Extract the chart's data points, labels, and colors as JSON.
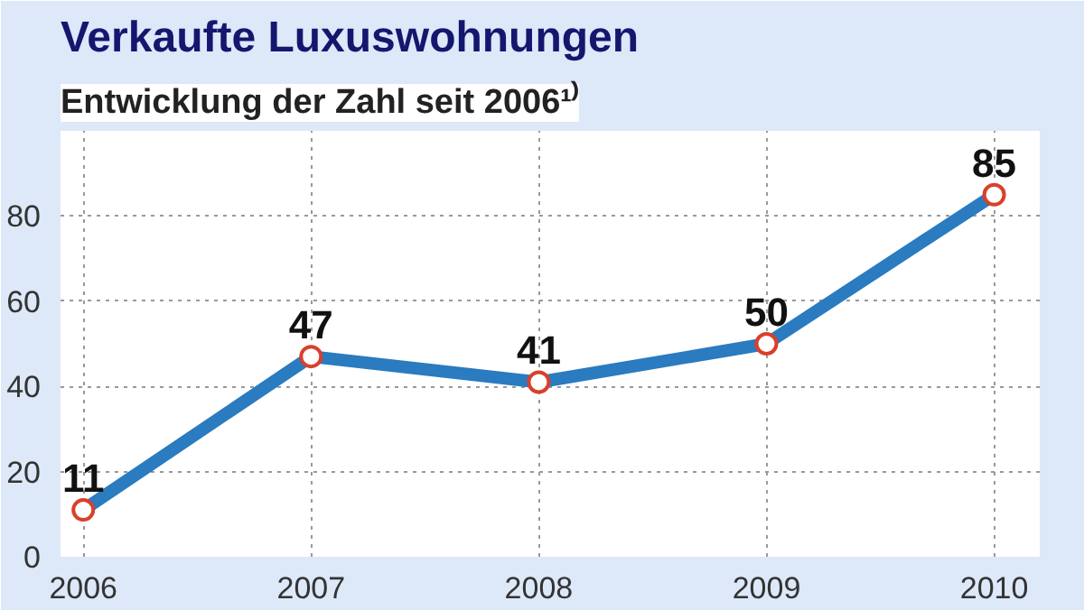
{
  "chart_data": {
    "type": "line",
    "title": "Verkaufte Luxuswohnungen",
    "subtitle": "Entwicklung der Zahl seit 2006¹⁾",
    "x": [
      2006,
      2007,
      2008,
      2009,
      2010
    ],
    "series": [
      {
        "color": "#2a7bbf",
        "values": [
          11,
          47,
          41,
          50,
          85
        ]
      }
    ],
    "xlim": [
      2005.9,
      2010.2
    ],
    "xticks": [
      2006,
      2007,
      2008,
      2009,
      2010
    ],
    "ylim": [
      0,
      100
    ],
    "yticks": [
      0,
      20,
      40,
      60,
      80
    ],
    "grid": true,
    "marker": "circle",
    "line_style": "solid",
    "data_labels": true
  }
}
